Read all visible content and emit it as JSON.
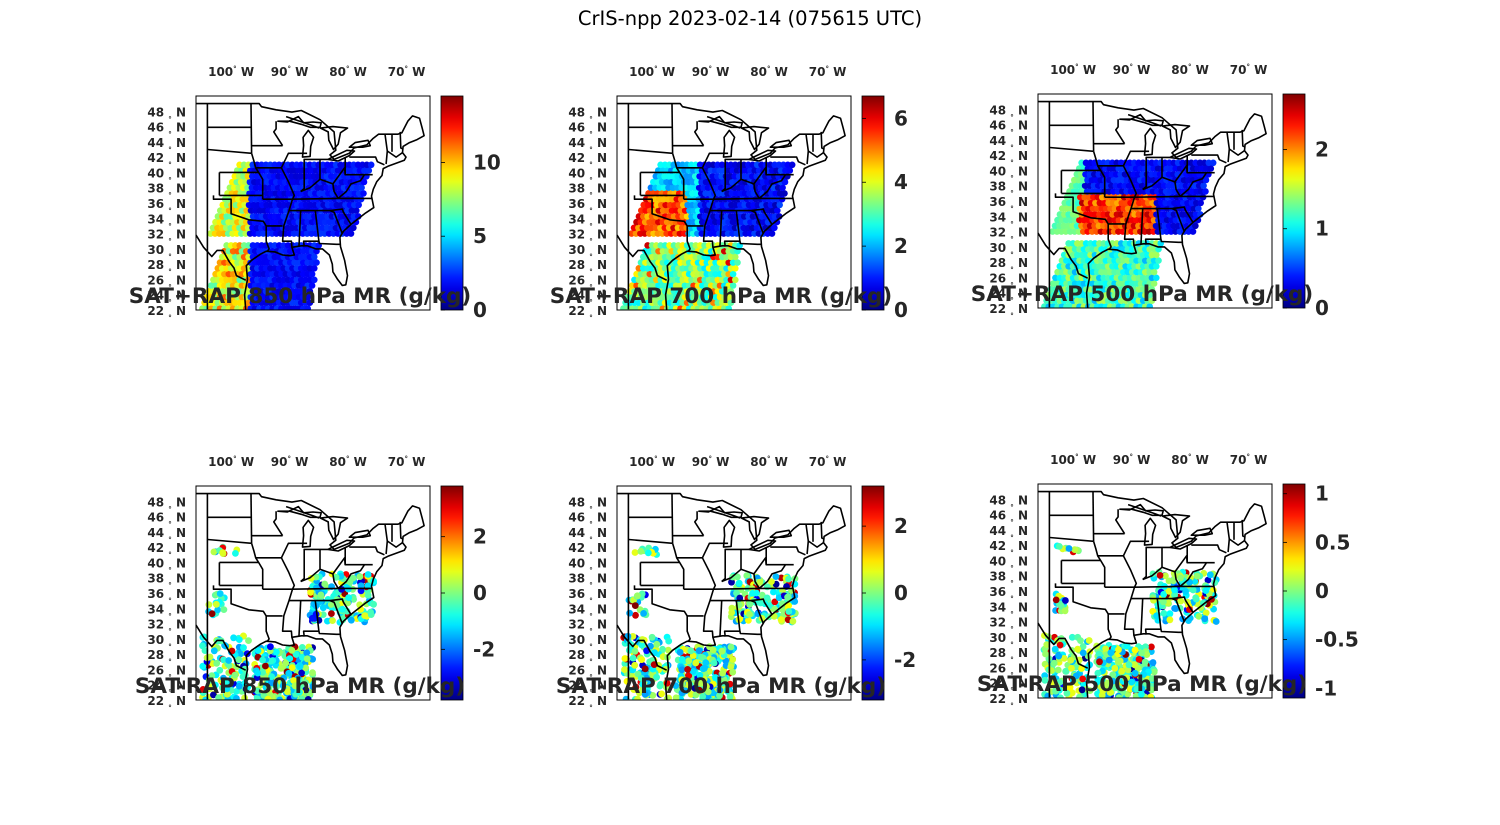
{
  "title": "CrIS-npp 2023-02-14 (075615 UTC)",
  "map": {
    "lon_labels": [
      "100",
      "90",
      "80",
      "70"
    ],
    "lon_suffix": "W",
    "lat_labels": [
      "48",
      "46",
      "44",
      "42",
      "40",
      "38",
      "36",
      "34",
      "32",
      "30",
      "28",
      "26",
      "24",
      "22"
    ],
    "lat_suffix": "N",
    "degree_symbol": "°",
    "colormap": "jet"
  },
  "panels": [
    {
      "title": "SAT+RAP 850 hPa MR (g/kg)",
      "mode": "full",
      "seed": 1,
      "cb_ticks": [
        "0",
        "5",
        "10"
      ],
      "cb_tick_values": [
        0,
        5,
        10
      ],
      "cb_range": [
        0,
        14.5
      ]
    },
    {
      "title": "SAT+RAP 700 hPa MR (g/kg)",
      "mode": "full",
      "seed": 2,
      "cb_ticks": [
        "0",
        "2",
        "4",
        "6"
      ],
      "cb_tick_values": [
        0,
        2,
        4,
        6
      ],
      "cb_range": [
        0,
        6.7
      ]
    },
    {
      "title": "SAT+RAP 500 hPa MR (g/kg)",
      "mode": "full",
      "seed": 3,
      "cb_ticks": [
        "0",
        "1",
        "2"
      ],
      "cb_tick_values": [
        0,
        1,
        2
      ],
      "cb_range": [
        0,
        2.7
      ]
    },
    {
      "title": "SAT-RAP 850 hPa MR (g/kg)",
      "mode": "diff",
      "seed": 4,
      "cb_ticks": [
        "-2",
        "0",
        "2"
      ],
      "cb_tick_values": [
        -2,
        0,
        2
      ],
      "cb_range": [
        -3.8,
        3.8
      ]
    },
    {
      "title": "SAT-RAP 700 hPa MR (g/kg)",
      "mode": "diff",
      "seed": 5,
      "cb_ticks": [
        "-2",
        "0",
        "2"
      ],
      "cb_tick_values": [
        -2,
        0,
        2
      ],
      "cb_range": [
        -3.2,
        3.2
      ]
    },
    {
      "title": "SAT-RAP 500 hPa MR (g/kg)",
      "mode": "diff",
      "seed": 6,
      "cb_ticks": [
        "-1",
        "-0.5",
        "0",
        "0.5",
        "1"
      ],
      "cb_tick_values": [
        -1,
        -0.5,
        0,
        0.5,
        1
      ],
      "cb_range": [
        -1.1,
        1.1
      ]
    }
  ]
}
